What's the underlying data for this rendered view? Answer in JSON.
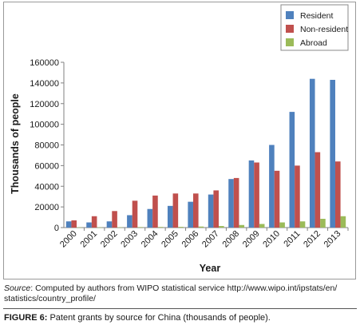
{
  "chart_data": {
    "type": "bar",
    "categories": [
      "2000",
      "2001",
      "2002",
      "2003",
      "2004",
      "2005",
      "2006",
      "2007",
      "2008",
      "2009",
      "2010",
      "2011",
      "2012",
      "2013"
    ],
    "series": [
      {
        "name": "Resident",
        "color": "#4f81bd",
        "values": [
          6000,
          5000,
          6000,
          12000,
          18000,
          21000,
          25000,
          32000,
          47000,
          65000,
          80000,
          112000,
          144000,
          143000
        ]
      },
      {
        "name": "Non-resident",
        "color": "#c0504d",
        "values": [
          7000,
          11000,
          16000,
          26000,
          31000,
          33000,
          33000,
          36000,
          48000,
          63000,
          55000,
          60000,
          73000,
          64000
        ]
      },
      {
        "name": "Abroad",
        "color": "#9bbb59",
        "values": [
          200,
          200,
          300,
          500,
          600,
          700,
          1000,
          1500,
          2500,
          3500,
          5000,
          6000,
          8500,
          11000
        ]
      }
    ],
    "yticks": [
      "0",
      "20000",
      "40000",
      "60000",
      "80000",
      "100000",
      "120000",
      "140000",
      "160000"
    ],
    "ylim": [
      0,
      160000
    ],
    "xlabel": "Year",
    "ylabel": "Thousands of people",
    "legend_position": "top-right",
    "grid": false
  },
  "source": {
    "label": "Source",
    "text": ": Computed by authors from WIPO statistical service http://www.wipo.int/ipstats/en/",
    "text2": "statistics/country_profile/"
  },
  "caption": {
    "label": "FIGURE 6:",
    "text": " Patent grants by source for China (thousands of people)."
  }
}
